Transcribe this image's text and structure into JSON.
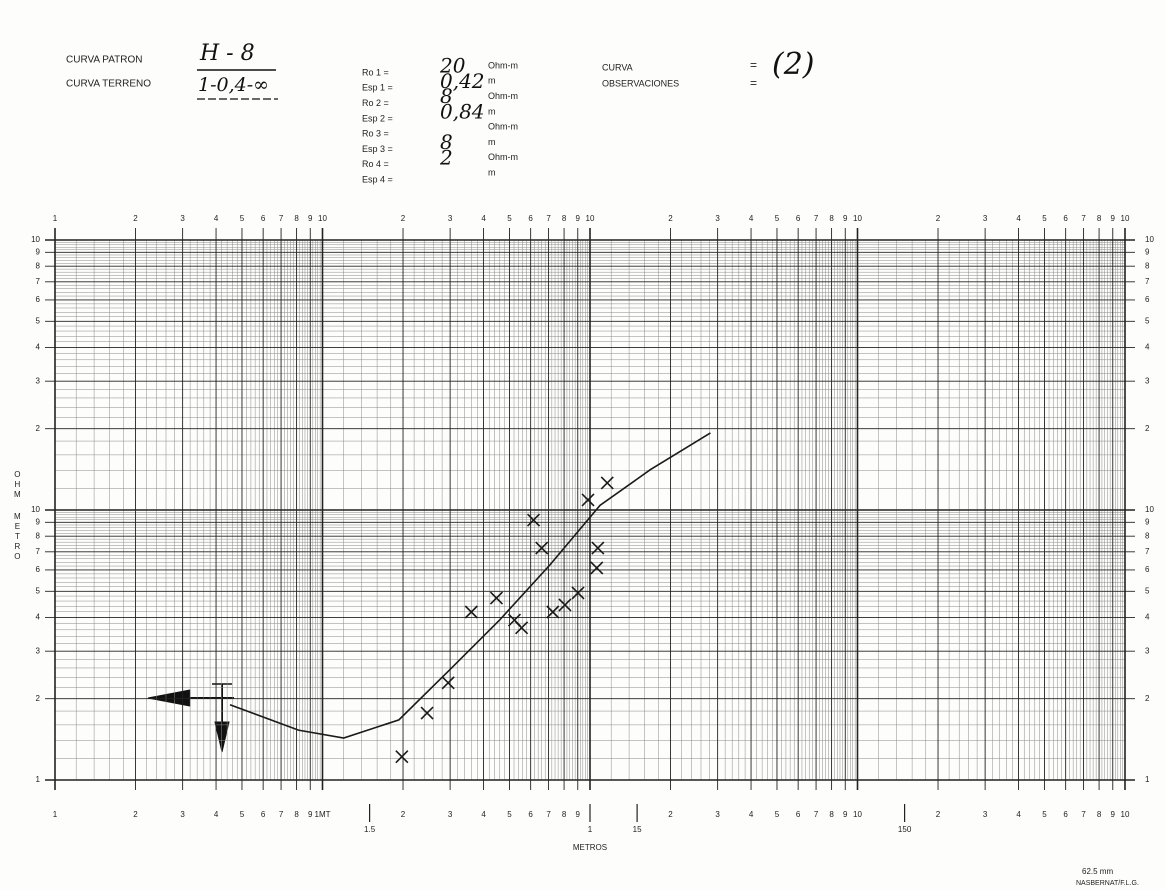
{
  "header": {
    "pattern_label": "CURVA PATRON",
    "pattern_value": "H - 8",
    "field_label": "CURVA TERRENO",
    "field_value": "1-0,4-∞",
    "params": [
      {
        "label": "Ro 1 =",
        "value": "20",
        "unit": "Ohm-m"
      },
      {
        "label": "Esp 1 =",
        "value": "0,42",
        "unit": "m"
      },
      {
        "label": "Ro 2 =",
        "value": "8",
        "unit": "Ohm-m"
      },
      {
        "label": "Esp 2 =",
        "value": "0,84",
        "unit": "m"
      },
      {
        "label": "Ro 3 =",
        "unit": "Ohm-m"
      },
      {
        "label": "Esp 3 =",
        "value": "8",
        "unit": "m"
      },
      {
        "label": "Ro 4 =",
        "value": "2",
        "unit": "Ohm-m"
      },
      {
        "label": "Esp 4 =",
        "unit": "m"
      }
    ],
    "curve_label": "CURVA",
    "curve_eq": "=",
    "curve_value": "(2)",
    "obs_label": "OBSERVACIONES",
    "obs_eq": "="
  },
  "chart_data": {
    "type": "scatter",
    "x_log": true,
    "y_log": true,
    "grid": true,
    "xlim": [
      1,
      10000
    ],
    "ylim": [
      1,
      100
    ],
    "xticks": [
      1,
      2,
      3,
      4,
      5,
      6,
      7,
      8,
      9,
      10,
      {
        "value": 20,
        "label": "2"
      },
      {
        "value": 30,
        "label": "3"
      },
      {
        "value": 40,
        "label": "4"
      },
      {
        "value": 50,
        "label": "5"
      },
      {
        "value": 60,
        "label": "6"
      },
      {
        "value": 70,
        "label": "7"
      },
      {
        "value": 80,
        "label": "8"
      },
      {
        "value": 90,
        "label": "9"
      },
      {
        "value": 100,
        "label": "10"
      },
      {
        "value": 200,
        "label": "2"
      },
      {
        "value": 300,
        "label": "3"
      },
      {
        "value": 400,
        "label": "4"
      },
      {
        "value": 500,
        "label": "5"
      },
      {
        "value": 600,
        "label": "6"
      },
      {
        "value": 700,
        "label": "7"
      },
      {
        "value": 800,
        "label": "8"
      },
      {
        "value": 900,
        "label": "9"
      },
      {
        "value": 1000,
        "label": "10"
      },
      {
        "value": 2000,
        "label": "2"
      },
      {
        "value": 3000,
        "label": "3"
      },
      {
        "value": 4000,
        "label": "4"
      },
      {
        "value": 5000,
        "label": "5"
      },
      {
        "value": 6000,
        "label": "6"
      },
      {
        "value": 7000,
        "label": "7"
      },
      {
        "value": 8000,
        "label": "8"
      },
      {
        "value": 9000,
        "label": "9"
      },
      {
        "value": 10000,
        "label": "10"
      }
    ],
    "x2ticks": [
      1,
      2,
      3,
      4,
      5,
      6,
      7,
      8,
      9,
      {
        "value": 10,
        "label": "1MT"
      },
      {
        "value": 20,
        "label": "2"
      },
      {
        "value": 30,
        "label": "3"
      },
      {
        "value": 40,
        "label": "4"
      },
      {
        "value": 50,
        "label": "5"
      },
      {
        "value": 60,
        "label": "6"
      },
      {
        "value": 70,
        "label": "7"
      },
      {
        "value": 80,
        "label": "8"
      },
      {
        "value": 90,
        "label": "9"
      },
      {
        "value": 200,
        "label": "2"
      },
      {
        "value": 300,
        "label": "3"
      },
      {
        "value": 400,
        "label": "4"
      },
      {
        "value": 500,
        "label": "5"
      },
      {
        "value": 600,
        "label": "6"
      },
      {
        "value": 700,
        "label": "7"
      },
      {
        "value": 800,
        "label": "8"
      },
      {
        "value": 900,
        "label": "9"
      },
      {
        "value": 1000,
        "label": "10"
      },
      {
        "value": 2000,
        "label": "2"
      },
      {
        "value": 3000,
        "label": "3"
      },
      {
        "value": 4000,
        "label": "4"
      },
      {
        "value": 5000,
        "label": "5"
      },
      {
        "value": 6000,
        "label": "6"
      },
      {
        "value": 7000,
        "label": "7"
      },
      {
        "value": 8000,
        "label": "8"
      },
      {
        "value": 9000,
        "label": "9"
      },
      {
        "value": 10000,
        "label": "10"
      }
    ],
    "x2marks": [
      {
        "value": 15,
        "label": "1.5"
      },
      {
        "value": 100,
        "label": "1"
      },
      {
        "value": 150,
        "label": "15"
      },
      {
        "value": 1500,
        "label": "150"
      }
    ],
    "yticks": [
      1,
      2,
      3,
      4,
      5,
      6,
      7,
      8,
      9,
      10,
      {
        "value": 20,
        "label": "2"
      },
      {
        "value": 30,
        "label": "3"
      },
      {
        "value": 40,
        "label": "4"
      },
      {
        "value": 50,
        "label": "5"
      },
      {
        "value": 60,
        "label": "6"
      },
      {
        "value": 70,
        "label": "7"
      },
      {
        "value": 80,
        "label": "8"
      },
      {
        "value": 90,
        "label": "9"
      },
      {
        "value": 100,
        "label": "10"
      }
    ],
    "xlabel": "METROS",
    "ylabel_lines": [
      "OHM",
      "METRO"
    ],
    "series": [
      {
        "kind": "scatter",
        "color": "#1a1a1a",
        "x": [
          19.8,
          24.6,
          29.5,
          36,
          44.7,
          52.2,
          55.5,
          61.5,
          66,
          72.6,
          80.6,
          90.2,
          98.3,
          107,
          106,
          116
        ],
        "values": [
          1.22,
          1.77,
          2.29,
          4.19,
          4.72,
          3.91,
          3.66,
          9.18,
          7.23,
          4.19,
          4.45,
          4.93,
          10.9,
          7.23,
          6.1,
          12.6
        ]
      },
      {
        "kind": "line",
        "color": "#1a1a1a",
        "x": [
          4.51,
          8.13,
          12,
          19.3,
          29.8,
          45.9,
          70.7,
          109,
          168,
          282
        ],
        "values": [
          1.9,
          1.53,
          1.43,
          1.67,
          2.55,
          3.91,
          6.25,
          10.4,
          14.1,
          19.3
        ]
      }
    ]
  },
  "footer": {
    "scale": "62.5 mm",
    "credit": "NASBERNAT/F.L.G."
  }
}
